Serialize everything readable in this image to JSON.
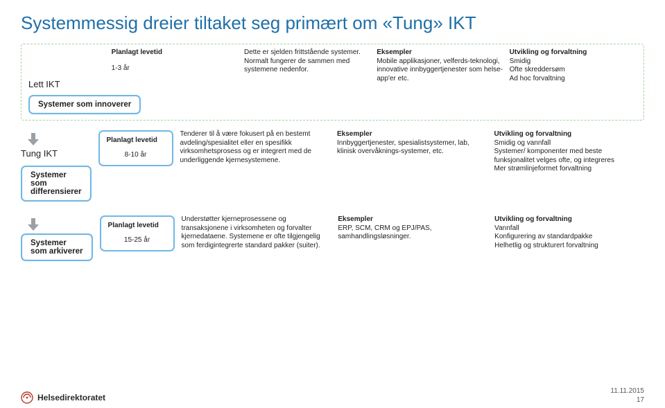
{
  "colors": {
    "title": "#1f6fa8",
    "dashed_border": "#a8d0a4",
    "badge_border": "#6fb8e6",
    "lev_border_mid": "#6fb8e6",
    "lev_border_low": "#6fb8e6",
    "arrow_fill": "#9aa0a6"
  },
  "title": "Systemmessig dreier tiltaket seg primært om «Tung» IKT",
  "light": {
    "label": "Lett IKT",
    "levetid_h": "Planlagt levetid",
    "levetid_v": "1-3 år",
    "desc": "Dette er sjelden frittstående systemer. Normalt fungerer de sammen med systemene nedenfor.",
    "eks_h": "Eksempler",
    "eks_v": "Mobile applikasjoner, velferds-teknologi, innovative innbyggertjenester som helse-app'er etc.",
    "utv_h": "Utvikling og forvaltning",
    "utv_v": "Smidig\nOfte skreddersøm\nAd hoc forvaltning",
    "badge": "Systemer som innoverer"
  },
  "mid": {
    "section": "Tung IKT",
    "badge": "Systemer som differensierer",
    "levetid_h": "Planlagt levetid",
    "levetid_v": "8-10 år",
    "desc": "Tenderer til å være fokusert på en bestemt avdeling/spesialitet eller en spesifikk virksomhetsprosess og er integrert med de underliggende kjernesystemene.",
    "eks_h": "Eksempler",
    "eks_v": "Innbyggertjenester, spesialistsystemer, lab, klinisk overvåknings-systemer, etc.",
    "utv_h": "Utvikling og forvaltning",
    "utv_v": "Smidig og vannfall\nSystemer/ komponenter med beste funksjonalitet velges ofte, og integreres\nMer strømlinjeformet forvaltning"
  },
  "low": {
    "badge": "Systemer som arkiverer",
    "levetid_h": "Planlagt levetid",
    "levetid_v": "15-25 år",
    "desc": "Understøtter kjerneprosessene og transaksjonene i virksomheten og forvalter kjernedataene. Systemene er ofte tilgjengelig som ferdigintegrerte standard pakker (suiter).",
    "eks_h": "Eksempler",
    "eks_v": "ERP, SCM, CRM og EPJ/PAS, samhandlingsløsninger.",
    "utv_h": "Utvikling og forvaltning",
    "utv_v": "Vannfall\nKonfigurering av standardpakke\nHelhetlig og strukturert forvaltning"
  },
  "footer": {
    "org": "Helsedirektoratet",
    "date": "11.11.2015",
    "page": "17"
  }
}
